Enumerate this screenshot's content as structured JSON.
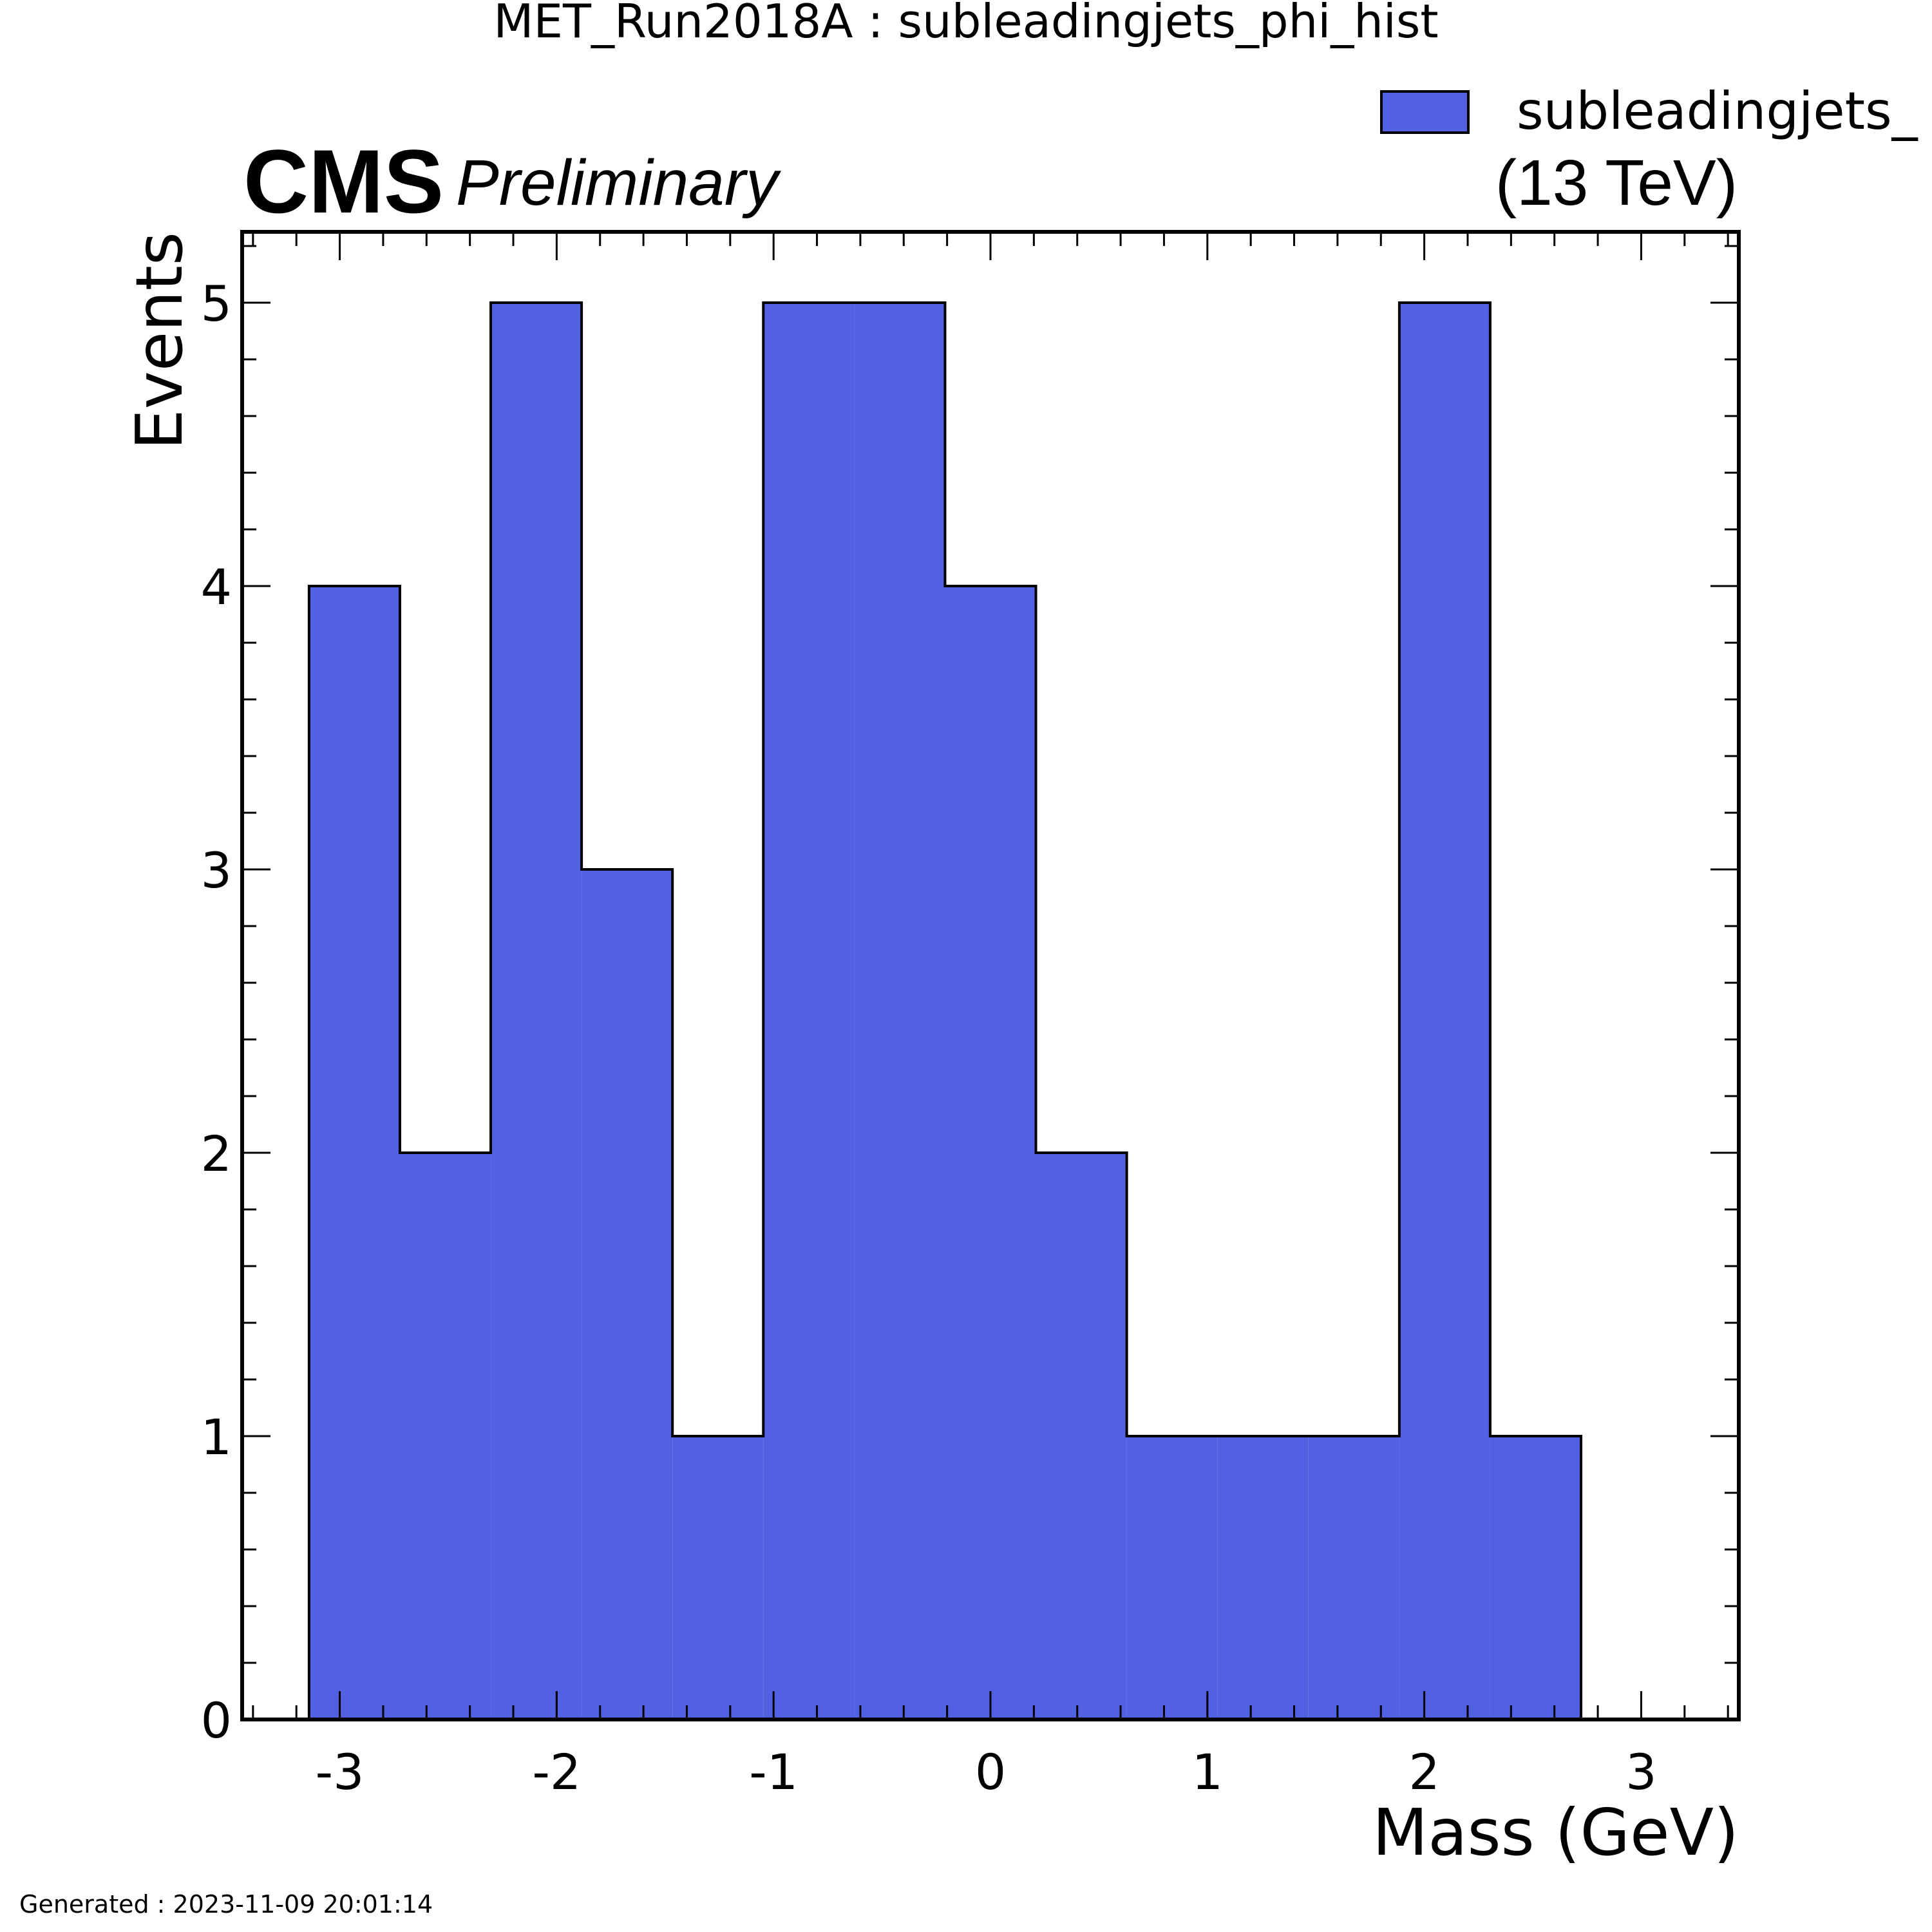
{
  "chart_data": {
    "type": "bar",
    "title": "MET_Run2018A : subleadingjets_phi_hist",
    "experiment": "CMS",
    "status": "Preliminary",
    "energy": "(13 TeV)",
    "xlabel": "Mass (GeV)",
    "ylabel": "Events",
    "legend": {
      "label": "subleadingjets_",
      "position": "top-right",
      "color": "#5260e2"
    },
    "bin_edges": [
      -3.1416,
      -2.7227,
      -2.3038,
      -1.885,
      -1.4661,
      -1.0472,
      -0.6283,
      -0.2094,
      0.2094,
      0.6283,
      1.0472,
      1.4661,
      1.885,
      2.3038,
      2.7227
    ],
    "values": [
      4,
      2,
      5,
      3,
      1,
      5,
      5,
      4,
      2,
      1,
      1,
      1,
      5,
      1
    ],
    "xlim": [
      -3.45,
      3.45
    ],
    "ylim": [
      0,
      5.25
    ],
    "xticks": [
      -3,
      -2,
      -1,
      0,
      1,
      2,
      3
    ],
    "xtick_labels": [
      "-3",
      "-2",
      "-1",
      "0",
      "1",
      "2",
      "3"
    ],
    "yticks": [
      0,
      1,
      2,
      3,
      4,
      5
    ],
    "ytick_labels": [
      "0",
      "1",
      "2",
      "3",
      "4",
      "5"
    ],
    "grid": false,
    "fill_color": "#5260e2",
    "edge_color": "#000000"
  },
  "footer": {
    "generated": "Generated : 2023-11-09 20:01:14"
  }
}
